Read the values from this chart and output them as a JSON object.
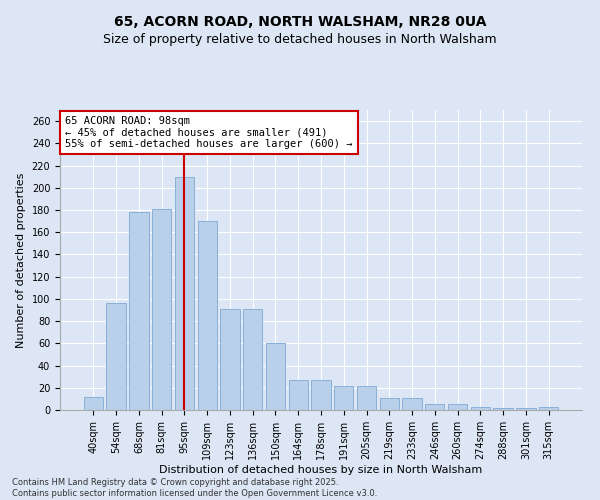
{
  "title": "65, ACORN ROAD, NORTH WALSHAM, NR28 0UA",
  "subtitle": "Size of property relative to detached houses in North Walsham",
  "xlabel": "Distribution of detached houses by size in North Walsham",
  "ylabel": "Number of detached properties",
  "categories": [
    "40sqm",
    "54sqm",
    "68sqm",
    "81sqm",
    "95sqm",
    "109sqm",
    "123sqm",
    "136sqm",
    "150sqm",
    "164sqm",
    "178sqm",
    "191sqm",
    "205sqm",
    "219sqm",
    "233sqm",
    "246sqm",
    "260sqm",
    "274sqm",
    "288sqm",
    "301sqm",
    "315sqm"
  ],
  "values": [
    12,
    96,
    178,
    181,
    210,
    170,
    91,
    91,
    60,
    27,
    27,
    22,
    22,
    11,
    11,
    5,
    5,
    3,
    2,
    2,
    3
  ],
  "bar_color": "#b8d0ea",
  "bar_edge_color": "#8ab0d8",
  "property_bin_index": 4,
  "annotation_line1": "65 ACORN ROAD: 98sqm",
  "annotation_line2": "← 45% of detached houses are smaller (491)",
  "annotation_line3": "55% of semi-detached houses are larger (600) →",
  "annotation_box_color": "#ffffff",
  "annotation_box_edge_color": "#cc0000",
  "vline_color": "#cc0000",
  "background_color": "#dce6f5",
  "plot_bg_color": "#dce6f5",
  "grid_color": "#ffffff",
  "footnote": "Contains HM Land Registry data © Crown copyright and database right 2025.\nContains public sector information licensed under the Open Government Licence v3.0.",
  "ylim": [
    0,
    270
  ],
  "title_fontsize": 10,
  "subtitle_fontsize": 9,
  "axis_label_fontsize": 8,
  "tick_fontsize": 7,
  "annotation_fontsize": 7.5,
  "footnote_fontsize": 6
}
